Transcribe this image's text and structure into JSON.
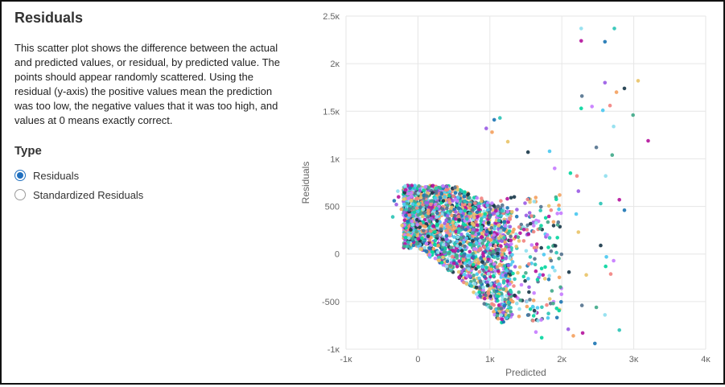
{
  "panel": {
    "title": "Residuals",
    "description": "This scatter plot shows the difference between the actual and predicted values, or residual, by predicted value. The points should appear randomly scattered. Using the residual (y-axis) the positive values mean the prediction was too low, the negative values that it was too high, and values at 0 means exactly correct.",
    "type_label": "Type",
    "options": [
      {
        "label": "Residuals",
        "checked": true
      },
      {
        "label": "Standardized Residuals",
        "checked": false
      }
    ]
  },
  "colors": {
    "accent": "#1f6fbf",
    "palette": [
      "#1f77b4",
      "#2ec4b6",
      "#9b5de5",
      "#f4a261",
      "#e9c46a",
      "#1b3a4b",
      "#4cc9f0",
      "#c77dff",
      "#06d6a0",
      "#f28482",
      "#577590",
      "#43aa8b",
      "#90e0ef",
      "#b5179e"
    ]
  },
  "chart_data": {
    "type": "scatter",
    "xlabel": "Predicted",
    "ylabel": "Residuals",
    "xlim": [
      -1000,
      4000
    ],
    "ylim": [
      -1000,
      2500
    ],
    "x_ticks": [
      -1000,
      0,
      1000,
      2000,
      3000,
      4000
    ],
    "x_tick_labels": [
      "-1κ",
      "0",
      "1κ",
      "2κ",
      "3κ",
      "4κ"
    ],
    "y_ticks": [
      -1000,
      -500,
      0,
      500,
      1000,
      1500,
      2000,
      2500
    ],
    "y_tick_labels": [
      "-1κ",
      "-500",
      "0",
      "500",
      "1κ",
      "1.5κ",
      "2κ",
      "2.5κ"
    ],
    "grid": true,
    "points": [
      [
        2270,
        2370
      ],
      [
        2270,
        2240
      ],
      [
        2600,
        2230
      ],
      [
        2730,
        2370
      ],
      [
        2600,
        1800
      ],
      [
        2760,
        1700
      ],
      [
        3060,
        1820
      ],
      [
        2870,
        1740
      ],
      [
        2570,
        1510
      ],
      [
        2420,
        1550
      ],
      [
        2270,
        1530
      ],
      [
        2670,
        1560
      ],
      [
        2280,
        1660
      ],
      [
        2990,
        1460
      ],
      [
        2720,
        1340
      ],
      [
        3200,
        1190
      ],
      [
        1060,
        1410
      ],
      [
        1140,
        1430
      ],
      [
        950,
        1320
      ],
      [
        1030,
        1280
      ],
      [
        1250,
        1180
      ],
      [
        1530,
        1070
      ],
      [
        1830,
        1080
      ],
      [
        1900,
        900
      ],
      [
        2120,
        850
      ],
      [
        2210,
        820
      ],
      [
        2480,
        1120
      ],
      [
        2700,
        1040
      ],
      [
        2610,
        820
      ],
      [
        2800,
        570
      ],
      [
        2870,
        460
      ],
      [
        2540,
        530
      ],
      [
        2230,
        660
      ],
      [
        1970,
        620
      ],
      [
        2230,
        230
      ],
      [
        2540,
        90
      ],
      [
        2620,
        -30
      ],
      [
        2720,
        -70
      ],
      [
        2610,
        -130
      ],
      [
        2680,
        -210
      ],
      [
        2280,
        -540
      ],
      [
        2480,
        -560
      ],
      [
        2600,
        -640
      ],
      [
        2290,
        -830
      ],
      [
        2460,
        -940
      ],
      [
        2800,
        -800
      ],
      [
        2090,
        -790
      ],
      [
        2160,
        -860
      ],
      [
        2340,
        -220
      ],
      [
        2100,
        -190
      ],
      [
        2200,
        420
      ],
      [
        1640,
        -820
      ],
      [
        1720,
        -880
      ],
      [
        1600,
        -700
      ],
      [
        1540,
        -640
      ],
      [
        1880,
        -520
      ],
      [
        -280,
        660
      ],
      [
        -270,
        600
      ],
      [
        -330,
        560
      ],
      [
        -350,
        390
      ],
      [
        -300,
        520
      ],
      [
        -230,
        470
      ],
      [
        -220,
        300
      ]
    ]
  }
}
